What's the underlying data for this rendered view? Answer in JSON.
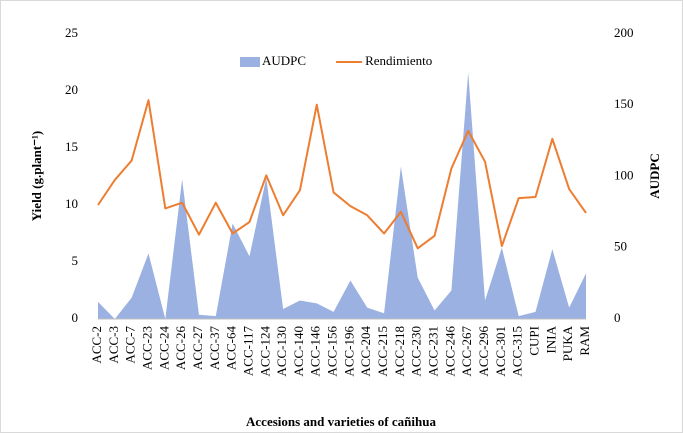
{
  "chart_data": {
    "type": "combo",
    "ylabel": "Yield (g.plant⁻¹)",
    "y2label": "AUDPC",
    "xlabel": "Accesions and varieties of cañihua",
    "categories": [
      "ACC-2",
      "ACC-3",
      "ACC-7",
      "ACC-23",
      "ACC-24",
      "ACC-26",
      "ACC-27",
      "ACC-37",
      "ACC-64",
      "ACC-117",
      "ACC-124",
      "ACC-130",
      "ACC-140",
      "ACC-146",
      "ACC-156",
      "ACC-196",
      "ACC-204",
      "ACC-215",
      "ACC-218",
      "ACC-230",
      "ACC-231",
      "ACC-246",
      "ACC-267",
      "ACC-296",
      "ACC-301",
      "ACC-315",
      "CUPI",
      "INIA",
      "PUKA",
      "RAM"
    ],
    "series": [
      {
        "name": "AUDPC",
        "type": "area",
        "axis": "y2",
        "color": "#9bb1e1",
        "values": [
          12,
          0,
          15,
          46,
          0,
          98,
          3,
          2,
          67,
          44,
          99,
          7,
          13,
          11,
          5,
          27,
          8,
          4,
          107,
          29,
          6,
          20,
          173,
          13,
          50,
          2,
          5,
          49,
          8,
          32
        ]
      },
      {
        "name": "Rendimiento",
        "type": "line",
        "color": "#ed7d31",
        "values": [
          10.0,
          12.2,
          13.9,
          19.2,
          9.7,
          10.2,
          7.4,
          10.2,
          7.5,
          8.5,
          12.6,
          9.1,
          11.3,
          18.8,
          11.1,
          9.9,
          9.1,
          7.5,
          9.4,
          6.2,
          7.3,
          13.2,
          16.5,
          13.8,
          6.4,
          10.6,
          10.7,
          15.8,
          11.4,
          9.3
        ]
      }
    ],
    "ylim": [
      0,
      25
    ],
    "yticks": [
      0,
      5,
      10,
      15,
      20,
      25
    ],
    "y2lim": [
      0,
      200
    ],
    "y2ticks": [
      0,
      50,
      100,
      150,
      200
    ],
    "legend": "top"
  }
}
